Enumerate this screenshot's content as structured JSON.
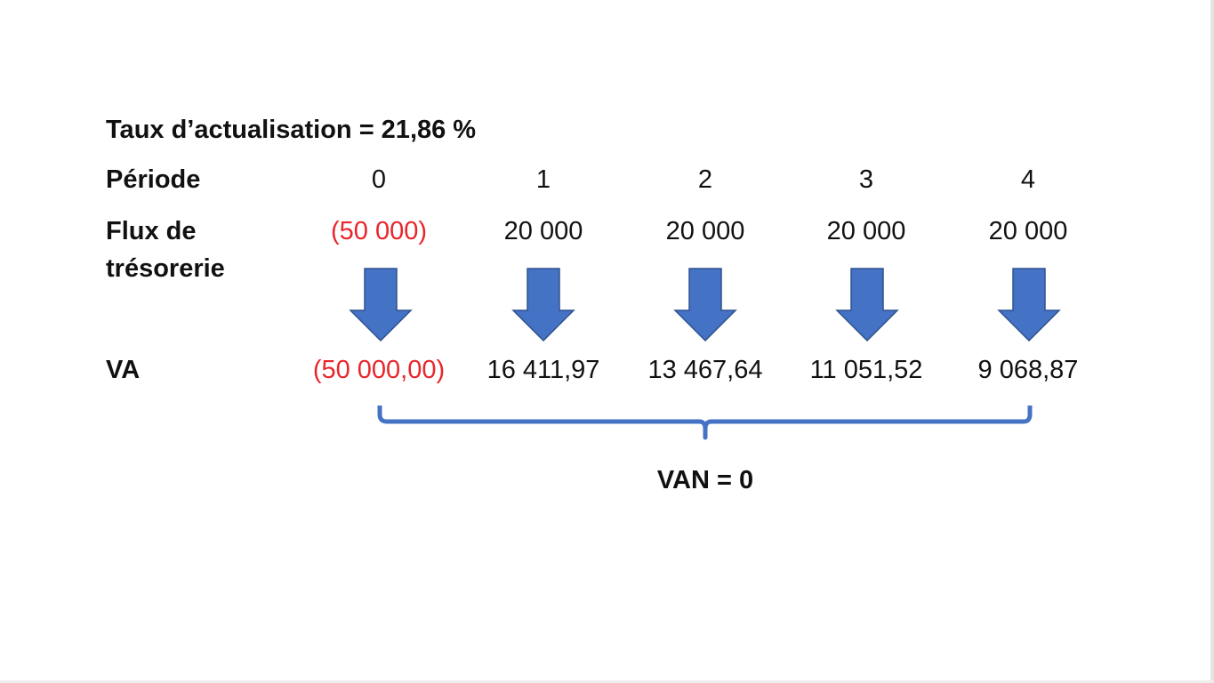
{
  "title": "Taux d’actualisation = 21,86 %",
  "rows": {
    "periode": {
      "label": "Période",
      "values": [
        "0",
        "1",
        "2",
        "3",
        "4"
      ]
    },
    "flux": {
      "label_line1": "Flux de",
      "label_line2": "trésorerie",
      "values": [
        "(50 000)",
        "20 000",
        "20 000",
        "20 000",
        "20 000"
      ]
    },
    "va": {
      "label": "VA",
      "values": [
        "(50 000,00)",
        "16 411,97",
        "13 467,64",
        "11 051,52",
        "9 068,87"
      ]
    }
  },
  "result": "VAN = 0",
  "colors": {
    "arrow": "#4472c4",
    "arrow_stroke": "#2f528f",
    "negative": "#e8262b",
    "text": "#111111"
  }
}
